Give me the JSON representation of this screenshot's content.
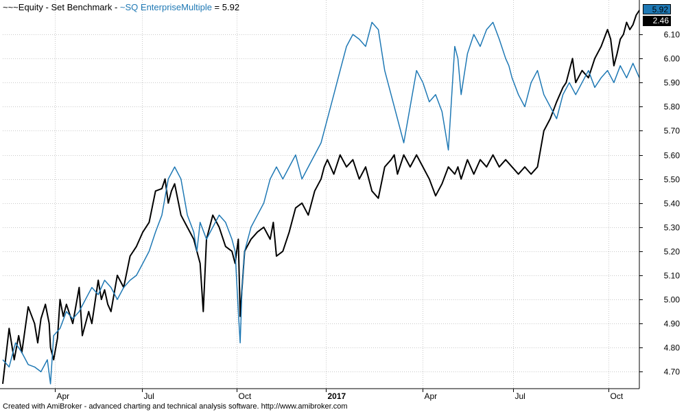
{
  "legend": {
    "series_a_label": "~~~Equity - Set Benchmark",
    "separator": " - ",
    "series_b_label": "~SQ EnterpriseMultiple",
    "equals": " = ",
    "series_b_value": "5.92"
  },
  "footer": {
    "text": "Created with AmiBroker - advanced charting and technical analysis software. http://www.amibroker.com"
  },
  "price_tags": {
    "blue_tag": "5.92",
    "black_tag": "2.46"
  },
  "colors": {
    "blue": "#1e78b4",
    "black": "#000000",
    "grid": "#c8c8c8",
    "blue_tag_bg": "#1e78b4",
    "black_tag_bg": "#000000"
  },
  "chart_data": {
    "type": "line",
    "title": "",
    "xlabel": "",
    "ylabel": "",
    "x_ticks": [
      {
        "label": "Apr",
        "x": 0.082,
        "bold": false
      },
      {
        "label": "Jul",
        "x": 0.219,
        "bold": false
      },
      {
        "label": "Oct",
        "x": 0.367,
        "bold": false
      },
      {
        "label": "2017",
        "x": 0.508,
        "bold": true
      },
      {
        "label": "Apr",
        "x": 0.66,
        "bold": false
      },
      {
        "label": "Jul",
        "x": 0.802,
        "bold": false
      },
      {
        "label": "Oct",
        "x": 0.952,
        "bold": false
      }
    ],
    "y_ticks": [
      4.7,
      4.8,
      4.9,
      5.0,
      5.1,
      5.2,
      5.3,
      5.4,
      5.5,
      5.6,
      5.7,
      5.8,
      5.9,
      6.0,
      6.1
    ],
    "ylim": [
      4.63,
      6.18
    ],
    "xlim": [
      0,
      1
    ],
    "grid": true,
    "legend_position": "top-left",
    "series": [
      {
        "name": "~~~Equity - Set Benchmark",
        "color": "#000000",
        "x": [
          0.0,
          0.01,
          0.018,
          0.025,
          0.03,
          0.04,
          0.05,
          0.055,
          0.06,
          0.067,
          0.073,
          0.075,
          0.08,
          0.086,
          0.09,
          0.095,
          0.1,
          0.11,
          0.12,
          0.125,
          0.135,
          0.14,
          0.15,
          0.155,
          0.16,
          0.165,
          0.17,
          0.18,
          0.19,
          0.2,
          0.21,
          0.22,
          0.23,
          0.24,
          0.25,
          0.255,
          0.26,
          0.265,
          0.27,
          0.28,
          0.29,
          0.3,
          0.305,
          0.31,
          0.315,
          0.32,
          0.33,
          0.34,
          0.35,
          0.36,
          0.365,
          0.37,
          0.373,
          0.376,
          0.38,
          0.39,
          0.4,
          0.41,
          0.42,
          0.425,
          0.43,
          0.44,
          0.45,
          0.46,
          0.47,
          0.48,
          0.49,
          0.5,
          0.505,
          0.51,
          0.52,
          0.53,
          0.54,
          0.55,
          0.56,
          0.57,
          0.58,
          0.59,
          0.6,
          0.61,
          0.615,
          0.62,
          0.63,
          0.64,
          0.65,
          0.66,
          0.67,
          0.68,
          0.69,
          0.7,
          0.71,
          0.715,
          0.72,
          0.73,
          0.74,
          0.75,
          0.76,
          0.77,
          0.78,
          0.79,
          0.8,
          0.81,
          0.82,
          0.83,
          0.84,
          0.85,
          0.86,
          0.87,
          0.875,
          0.88,
          0.885,
          0.89,
          0.895,
          0.9,
          0.91,
          0.92,
          0.93,
          0.94,
          0.95,
          0.955,
          0.96,
          0.965,
          0.97,
          0.975,
          0.98,
          0.985,
          0.99,
          0.995,
          1.0
        ],
        "values": [
          4.65,
          4.88,
          4.75,
          4.85,
          4.78,
          4.97,
          4.9,
          4.82,
          4.92,
          4.98,
          4.9,
          4.8,
          4.75,
          4.84,
          5.0,
          4.93,
          4.98,
          4.9,
          5.05,
          4.85,
          4.95,
          4.9,
          5.08,
          5.0,
          5.04,
          4.98,
          4.95,
          5.1,
          5.05,
          5.18,
          5.22,
          5.28,
          5.32,
          5.45,
          5.46,
          5.5,
          5.4,
          5.45,
          5.48,
          5.35,
          5.3,
          5.25,
          5.2,
          5.15,
          4.95,
          5.25,
          5.35,
          5.3,
          5.22,
          5.2,
          5.15,
          5.25,
          4.93,
          5.05,
          5.2,
          5.25,
          5.28,
          5.3,
          5.25,
          5.32,
          5.18,
          5.2,
          5.28,
          5.38,
          5.4,
          5.35,
          5.45,
          5.5,
          5.55,
          5.58,
          5.52,
          5.6,
          5.55,
          5.58,
          5.5,
          5.55,
          5.45,
          5.42,
          5.55,
          5.58,
          5.6,
          5.52,
          5.6,
          5.55,
          5.6,
          5.55,
          5.5,
          5.43,
          5.48,
          5.55,
          5.52,
          5.55,
          5.5,
          5.58,
          5.52,
          5.58,
          5.55,
          5.6,
          5.55,
          5.58,
          5.55,
          5.52,
          5.55,
          5.52,
          5.55,
          5.7,
          5.75,
          5.82,
          5.85,
          5.88,
          5.9,
          5.95,
          6.0,
          5.9,
          5.95,
          5.92,
          6.0,
          6.05,
          6.12,
          6.08,
          5.97,
          6.02,
          6.08,
          6.1,
          6.15,
          6.12,
          6.14,
          6.18,
          6.2
        ]
      },
      {
        "name": "~SQ EnterpriseMultiple",
        "color": "#1e78b4",
        "x": [
          0.0,
          0.01,
          0.02,
          0.03,
          0.04,
          0.05,
          0.06,
          0.07,
          0.075,
          0.08,
          0.09,
          0.1,
          0.11,
          0.12,
          0.13,
          0.14,
          0.15,
          0.16,
          0.17,
          0.18,
          0.19,
          0.2,
          0.21,
          0.22,
          0.23,
          0.24,
          0.25,
          0.26,
          0.27,
          0.28,
          0.29,
          0.3,
          0.305,
          0.31,
          0.32,
          0.33,
          0.34,
          0.35,
          0.36,
          0.365,
          0.37,
          0.373,
          0.376,
          0.38,
          0.39,
          0.4,
          0.41,
          0.42,
          0.43,
          0.44,
          0.45,
          0.46,
          0.47,
          0.48,
          0.49,
          0.5,
          0.51,
          0.52,
          0.53,
          0.54,
          0.55,
          0.56,
          0.57,
          0.58,
          0.59,
          0.6,
          0.61,
          0.62,
          0.63,
          0.64,
          0.65,
          0.66,
          0.67,
          0.68,
          0.69,
          0.7,
          0.71,
          0.715,
          0.72,
          0.73,
          0.74,
          0.75,
          0.76,
          0.77,
          0.78,
          0.79,
          0.795,
          0.8,
          0.81,
          0.82,
          0.83,
          0.84,
          0.85,
          0.86,
          0.87,
          0.88,
          0.89,
          0.9,
          0.91,
          0.92,
          0.93,
          0.94,
          0.95,
          0.96,
          0.97,
          0.98,
          0.99,
          1.0
        ],
        "values": [
          4.75,
          4.72,
          4.82,
          4.78,
          4.73,
          4.72,
          4.7,
          4.75,
          4.65,
          4.85,
          4.88,
          4.95,
          4.92,
          4.95,
          5.0,
          5.05,
          5.02,
          5.08,
          5.05,
          5.0,
          5.05,
          5.08,
          5.1,
          5.15,
          5.2,
          5.28,
          5.35,
          5.5,
          5.55,
          5.5,
          5.35,
          5.28,
          5.2,
          5.32,
          5.25,
          5.3,
          5.35,
          5.32,
          5.25,
          5.2,
          4.95,
          4.82,
          5.05,
          5.2,
          5.3,
          5.35,
          5.4,
          5.5,
          5.55,
          5.5,
          5.55,
          5.6,
          5.5,
          5.55,
          5.6,
          5.65,
          5.75,
          5.85,
          5.95,
          6.05,
          6.1,
          6.08,
          6.05,
          6.15,
          6.12,
          5.95,
          5.85,
          5.75,
          5.65,
          5.8,
          5.95,
          5.9,
          5.82,
          5.85,
          5.78,
          5.62,
          6.05,
          6.0,
          5.85,
          6.02,
          6.1,
          6.05,
          6.12,
          6.15,
          6.08,
          6.0,
          5.97,
          5.92,
          5.85,
          5.8,
          5.9,
          5.95,
          5.85,
          5.8,
          5.75,
          5.85,
          5.9,
          5.85,
          5.9,
          5.95,
          5.88,
          5.92,
          5.95,
          5.9,
          5.97,
          5.92,
          5.98,
          5.92
        ]
      }
    ]
  }
}
